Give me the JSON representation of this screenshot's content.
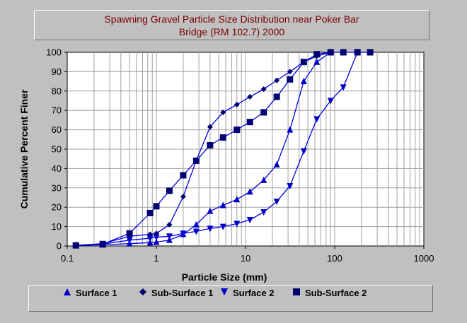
{
  "chart_data": {
    "type": "line",
    "title_line1": "Spawning Gravel Particle Size Distribution near Poker Bar",
    "title_line2": "Bridge (RM 102.7) 2000",
    "xlabel": "Particle Size (mm)",
    "ylabel": "Cumulative Percent Finer",
    "xscale": "log",
    "xlim": [
      0.1,
      1000
    ],
    "ylim": [
      0,
      100
    ],
    "x_ticks": [
      "0.1",
      "1",
      "10",
      "100",
      "1000"
    ],
    "y_ticks": [
      "0",
      "10",
      "20",
      "30",
      "40",
      "50",
      "60",
      "70",
      "80",
      "90",
      "100"
    ],
    "grid": true,
    "legend_position": "bottom",
    "line_color": "#0000e0",
    "series": [
      {
        "name": "Surface 1",
        "marker": "triangle-up",
        "color": "#0000c8",
        "points": [
          [
            0.125,
            0.3
          ],
          [
            0.25,
            0.6
          ],
          [
            0.5,
            1.2
          ],
          [
            0.85,
            1.7
          ],
          [
            1,
            2
          ],
          [
            1.4,
            3
          ],
          [
            2,
            6
          ],
          [
            2.8,
            11
          ],
          [
            4,
            18
          ],
          [
            5.6,
            21
          ],
          [
            8,
            24
          ],
          [
            11.2,
            28
          ],
          [
            16,
            34
          ],
          [
            22.4,
            42
          ],
          [
            31.5,
            60
          ],
          [
            45,
            85
          ],
          [
            63,
            95
          ],
          [
            90,
            100
          ]
        ]
      },
      {
        "name": "Sub-Surface 1",
        "marker": "diamond",
        "color": "#000070",
        "points": [
          [
            0.125,
            0.3
          ],
          [
            0.25,
            1.2
          ],
          [
            0.5,
            5
          ],
          [
            0.85,
            6
          ],
          [
            1,
            6.5
          ],
          [
            1.4,
            11
          ],
          [
            2,
            25.5
          ],
          [
            2.8,
            44
          ],
          [
            4,
            61.5
          ],
          [
            5.6,
            69
          ],
          [
            8,
            73
          ],
          [
            11.2,
            77
          ],
          [
            16,
            81
          ],
          [
            22.4,
            85.5
          ],
          [
            31.5,
            90
          ],
          [
            45,
            95
          ],
          [
            63,
            98
          ],
          [
            90,
            100
          ]
        ]
      },
      {
        "name": "Surface 2",
        "marker": "triangle-down",
        "color": "#0000c8",
        "points": [
          [
            0.125,
            0.3
          ],
          [
            0.25,
            1
          ],
          [
            0.5,
            3
          ],
          [
            0.85,
            4
          ],
          [
            1,
            4.5
          ],
          [
            1.4,
            5
          ],
          [
            2,
            6.5
          ],
          [
            2.8,
            7.5
          ],
          [
            4,
            9
          ],
          [
            5.6,
            10
          ],
          [
            8,
            11.5
          ],
          [
            11.2,
            13.5
          ],
          [
            16,
            17.5
          ],
          [
            22.4,
            23
          ],
          [
            31.5,
            31
          ],
          [
            45,
            49
          ],
          [
            63,
            65.5
          ],
          [
            90,
            75
          ],
          [
            125,
            82
          ],
          [
            180,
            100
          ]
        ]
      },
      {
        "name": "Sub-Surface 2",
        "marker": "square",
        "color": "#000070",
        "points": [
          [
            0.125,
            0.3
          ],
          [
            0.25,
            1
          ],
          [
            0.5,
            6.5
          ],
          [
            0.85,
            17
          ],
          [
            1,
            20.5
          ],
          [
            1.4,
            28.5
          ],
          [
            2,
            36.5
          ],
          [
            2.8,
            44
          ],
          [
            4,
            52
          ],
          [
            5.6,
            56
          ],
          [
            8,
            60
          ],
          [
            11.2,
            64
          ],
          [
            16,
            69
          ],
          [
            22.4,
            77
          ],
          [
            31.5,
            86
          ],
          [
            45,
            95
          ],
          [
            63,
            99
          ],
          [
            90,
            100
          ],
          [
            125,
            100
          ],
          [
            180,
            100
          ],
          [
            250,
            100
          ]
        ]
      }
    ]
  }
}
